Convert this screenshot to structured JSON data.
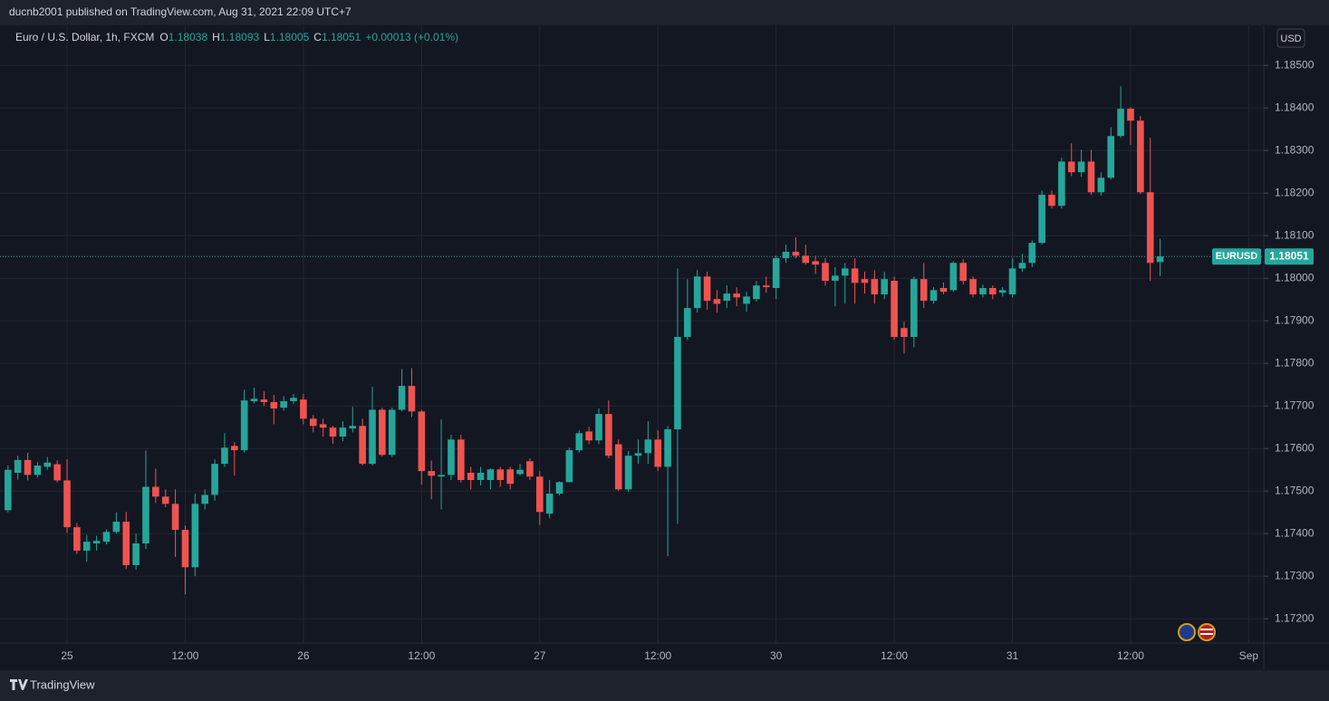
{
  "page": {
    "published": "ducnb2001 published on TradingView.com, Aug 31, 2021 22:09 UTC+7",
    "symbol": "Euro / U.S. Dollar, 1h, FXCM",
    "ohlc": [
      {
        "key": "O",
        "value": "1.18038"
      },
      {
        "key": "H",
        "value": "1.18093"
      },
      {
        "key": "L",
        "value": "1.18005"
      },
      {
        "key": "C",
        "value": "1.18051"
      }
    ],
    "change": "+0.00013 (+0.01%)",
    "currency": "USD",
    "footer": "TradingView"
  },
  "chart_data": {
    "type": "candlestick",
    "up_color": "#26a69a",
    "down_color": "#ef5350",
    "grid": true,
    "last_price": {
      "symbol": "EURUSD",
      "value": 1.18051
    },
    "ylim": [
      1.17143,
      1.18594
    ],
    "yticks": [
      {
        "value": 1.172,
        "label": "1.17200"
      },
      {
        "value": 1.173,
        "label": "1.17300"
      },
      {
        "value": 1.174,
        "label": "1.17400"
      },
      {
        "value": 1.175,
        "label": "1.17500"
      },
      {
        "value": 1.176,
        "label": "1.17600"
      },
      {
        "value": 1.177,
        "label": "1.17700"
      },
      {
        "value": 1.178,
        "label": "1.17800"
      },
      {
        "value": 1.179,
        "label": "1.17900"
      },
      {
        "value": 1.18,
        "label": "1.18000"
      },
      {
        "value": 1.181,
        "label": "1.18100"
      },
      {
        "value": 1.182,
        "label": "1.18200"
      },
      {
        "value": 1.183,
        "label": "1.18300"
      },
      {
        "value": 1.184,
        "label": "1.18400"
      },
      {
        "value": 1.185,
        "label": "1.18500"
      }
    ],
    "categories": [
      null,
      null,
      null,
      null,
      null,
      null,
      "25",
      null,
      null,
      null,
      null,
      null,
      null,
      null,
      null,
      null,
      null,
      null,
      "12:00",
      null,
      null,
      null,
      null,
      null,
      null,
      null,
      null,
      null,
      null,
      null,
      "26",
      null,
      null,
      null,
      null,
      null,
      null,
      null,
      null,
      null,
      null,
      null,
      "12:00",
      null,
      null,
      null,
      null,
      null,
      null,
      null,
      null,
      null,
      null,
      null,
      "27",
      null,
      null,
      null,
      null,
      null,
      null,
      null,
      null,
      null,
      null,
      null,
      "12:00",
      null,
      null,
      null,
      null,
      null,
      null,
      null,
      null,
      null,
      null,
      null,
      "30",
      null,
      null,
      null,
      null,
      null,
      null,
      null,
      null,
      null,
      null,
      null,
      "12:00",
      null,
      null,
      null,
      null,
      null,
      null,
      null,
      null,
      null,
      null,
      null,
      "31",
      null,
      null,
      null,
      null,
      null,
      null,
      null,
      null,
      null,
      null,
      null,
      "12:00",
      null,
      null,
      null,
      null,
      null,
      null,
      null,
      null,
      null,
      null,
      null,
      "Sep"
    ],
    "open": [
      1.17455,
      1.17543,
      1.17573,
      1.17538,
      1.17557,
      1.17563,
      1.17525,
      1.17415,
      1.1736,
      1.17377,
      1.17381,
      1.17404,
      1.17428,
      1.17326,
      1.17377,
      1.1751,
      1.17487,
      1.1747,
      1.17409,
      1.17321,
      1.1747,
      1.17491,
      1.17564,
      1.17606,
      1.17596,
      1.17711,
      1.17715,
      1.17709,
      1.17696,
      1.17711,
      1.17715,
      1.1767,
      1.17657,
      1.17649,
      1.17628,
      1.17647,
      1.17653,
      1.17564,
      1.17691,
      1.17585,
      1.17691,
      1.17747,
      1.17687,
      1.17547,
      1.17534,
      1.17538,
      1.17621,
      1.17543,
      1.17526,
      1.17526,
      1.17551,
      1.17551,
      1.1754,
      1.1757,
      1.17534,
      1.17447,
      1.17494,
      1.17521,
      1.17596,
      1.1764,
      1.17619,
      1.17681,
      1.1761,
      1.17504,
      1.17583,
      1.17589,
      1.17621,
      1.17557,
      1.17645,
      1.17862,
      1.1793,
      1.18004,
      1.17951,
      1.17947,
      1.17964,
      1.1794,
      1.17951,
      1.17983,
      1.17977,
      1.18047,
      1.18062,
      1.18053,
      1.1804,
      1.18036,
      1.17994,
      1.18006,
      1.18023,
      1.17998,
      1.17998,
      1.17962,
      1.17994,
      1.17883,
      1.17862,
      1.17998,
      1.17947,
      1.17977,
      1.17972,
      1.18036,
      1.17998,
      1.17962,
      1.17977,
      1.17966,
      1.17962,
      1.18023,
      1.18036,
      1.18083,
      1.18196,
      1.1817,
      1.18274,
      1.18249,
      1.18274,
      1.18202,
      1.18236,
      1.18334,
      1.18398,
      1.1837,
      1.18202,
      1.18038,
      null,
      null,
      null,
      null,
      null,
      null,
      null,
      null,
      null
    ],
    "high": [
      1.1756,
      1.17583,
      1.1759,
      1.17568,
      1.1758,
      1.17572,
      1.17575,
      1.17425,
      1.17397,
      1.17395,
      1.1741,
      1.1745,
      1.17451,
      1.174,
      1.17595,
      1.17553,
      1.17504,
      1.17504,
      1.17419,
      1.17494,
      1.17504,
      1.17575,
      1.17636,
      1.17615,
      1.17738,
      1.17743,
      1.17734,
      1.17726,
      1.17723,
      1.17728,
      1.17728,
      1.17679,
      1.1767,
      1.17653,
      1.17664,
      1.17698,
      1.1767,
      1.17745,
      1.17696,
      1.17696,
      1.17787,
      1.17789,
      1.17691,
      1.17572,
      1.17668,
      1.17632,
      1.17632,
      1.17557,
      1.17557,
      1.17553,
      1.17557,
      1.17557,
      1.17564,
      1.17577,
      1.17547,
      1.17526,
      1.17523,
      1.17602,
      1.17643,
      1.17651,
      1.17694,
      1.17713,
      1.17621,
      1.17594,
      1.17621,
      1.17664,
      1.17643,
      1.17653,
      1.18023,
      1.17998,
      1.18019,
      1.18015,
      1.17972,
      1.17983,
      1.17979,
      1.17968,
      1.17994,
      1.18004,
      1.18053,
      1.18079,
      1.18096,
      1.18079,
      1.18053,
      1.18047,
      1.18026,
      1.18036,
      1.18047,
      1.18015,
      1.18019,
      1.18015,
      1.18004,
      1.17898,
      1.18004,
      1.18036,
      1.17979,
      1.1799,
      1.1804,
      1.18045,
      1.18004,
      1.17985,
      1.17983,
      1.17979,
      1.18047,
      1.18057,
      1.18089,
      1.18206,
      1.18206,
      1.18283,
      1.18317,
      1.18302,
      1.18302,
      1.18249,
      1.18355,
      1.18451,
      1.18402,
      1.18381,
      1.1833,
      1.18093,
      null,
      null,
      null,
      null,
      null,
      null,
      null,
      null,
      null
    ],
    "low": [
      1.1745,
      1.17527,
      1.17525,
      1.17532,
      1.1755,
      1.1752,
      1.17402,
      1.17352,
      1.17334,
      1.1736,
      1.17375,
      1.174,
      1.17317,
      1.17315,
      1.17364,
      1.17472,
      1.17462,
      1.17345,
      1.17257,
      1.173,
      1.17457,
      1.17477,
      1.17557,
      1.17536,
      1.1759,
      1.17706,
      1.177,
      1.17657,
      1.17689,
      1.17704,
      1.17657,
      1.17638,
      1.17628,
      1.17611,
      1.17617,
      1.17638,
      1.1756,
      1.1756,
      1.17581,
      1.1758,
      1.17687,
      1.17674,
      1.17515,
      1.17481,
      1.17457,
      1.17526,
      1.1752,
      1.17504,
      1.17513,
      1.17504,
      1.1751,
      1.17504,
      1.17536,
      1.17526,
      1.1742,
      1.17436,
      1.1749,
      1.17521,
      1.1759,
      1.1761,
      1.1761,
      1.17577,
      1.175,
      1.17498,
      1.17564,
      1.17564,
      1.17547,
      1.17347,
      1.17423,
      1.17855,
      1.17919,
      1.17926,
      1.17919,
      1.1793,
      1.17934,
      1.17921,
      1.17945,
      1.17966,
      1.17951,
      1.18036,
      1.18047,
      1.18032,
      1.1801,
      1.17983,
      1.17934,
      1.1794,
      1.1794,
      1.17964,
      1.1794,
      1.17951,
      1.17855,
      1.17823,
      1.17838,
      1.1793,
      1.1794,
      1.17962,
      1.17968,
      1.17985,
      1.17955,
      1.17955,
      1.17951,
      1.17957,
      1.17955,
      1.18015,
      1.18026,
      1.18079,
      1.18164,
      1.18164,
      1.1824,
      1.18238,
      1.18196,
      1.18194,
      1.18232,
      1.1833,
      1.18313,
      1.18198,
      1.17994,
      1.18005,
      null,
      null,
      null,
      null,
      null,
      null,
      null,
      null,
      null
    ],
    "close": [
      1.1755,
      1.17573,
      1.17538,
      1.1756,
      1.17567,
      1.17525,
      1.17415,
      1.1736,
      1.17381,
      1.17383,
      1.17404,
      1.17428,
      1.17326,
      1.17377,
      1.1751,
      1.17487,
      1.1747,
      1.17409,
      1.17321,
      1.1747,
      1.17491,
      1.17564,
      1.17602,
      1.17596,
      1.17713,
      1.17717,
      1.17709,
      1.17694,
      1.17711,
      1.17719,
      1.1767,
      1.17653,
      1.17649,
      1.17628,
      1.17649,
      1.17653,
      1.17564,
      1.17691,
      1.17585,
      1.17691,
      1.17747,
      1.17687,
      1.17547,
      1.17536,
      1.17538,
      1.17621,
      1.17526,
      1.17526,
      1.17543,
      1.17551,
      1.17526,
      1.17517,
      1.1755,
      1.17534,
      1.17451,
      1.17494,
      1.17521,
      1.17596,
      1.17636,
      1.17619,
      1.17681,
      1.17583,
      1.17504,
      1.17583,
      1.17589,
      1.17621,
      1.17557,
      1.17645,
      1.17862,
      1.1793,
      1.18004,
      1.17947,
      1.1794,
      1.17964,
      1.17955,
      1.17957,
      1.17983,
      1.17979,
      1.18047,
      1.18062,
      1.18053,
      1.18036,
      1.18032,
      1.17994,
      1.18006,
      1.18023,
      1.17989,
      1.17989,
      1.17962,
      1.17998,
      1.17862,
      1.17862,
      1.17998,
      1.17947,
      1.17972,
      1.17968,
      1.18036,
      1.17994,
      1.17962,
      1.17977,
      1.17962,
      1.17972,
      1.18023,
      1.18036,
      1.18083,
      1.18196,
      1.1817,
      1.18274,
      1.18249,
      1.18274,
      1.18202,
      1.18236,
      1.18334,
      1.18398,
      1.1837,
      1.18202,
      1.18036,
      1.18051,
      null,
      null,
      null,
      null,
      null,
      null,
      null,
      null,
      null
    ]
  }
}
